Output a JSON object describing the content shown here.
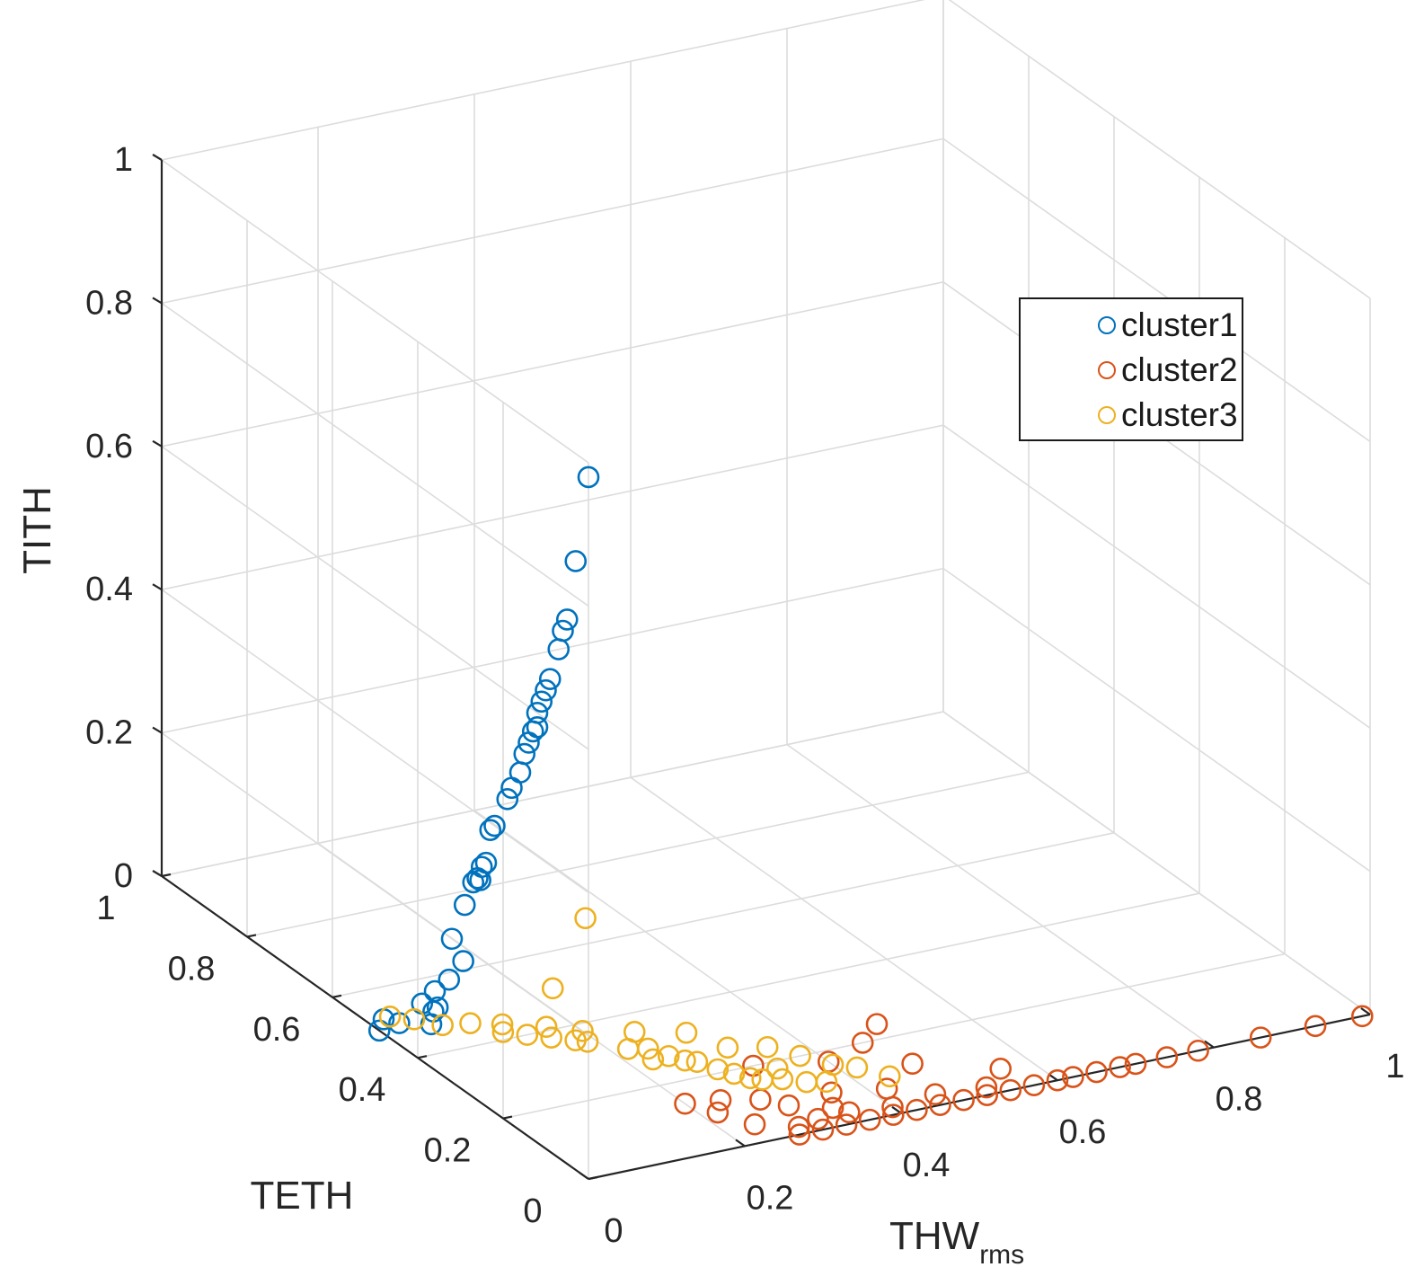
{
  "chart_data": {
    "type": "scatter3d",
    "xlabel": "THW",
    "xlabel_sub": "rms",
    "ylabel": "TETH",
    "zlabel": "TITH",
    "xlim": [
      0,
      1
    ],
    "ylim": [
      0,
      1
    ],
    "zlim": [
      0,
      1
    ],
    "x_ticks": [
      "0",
      "0.2",
      "0.4",
      "0.6",
      "0.8",
      "1"
    ],
    "y_ticks": [
      "0",
      "0.2",
      "0.4",
      "0.6",
      "0.8",
      "1"
    ],
    "z_ticks": [
      "0",
      "0.2",
      "0.4",
      "0.6",
      "0.8",
      "1"
    ],
    "grid": true,
    "legend_position": "top-right",
    "series": [
      {
        "name": "cluster1",
        "color": "#0072BD",
        "points": [
          [
            0.0,
            0.0,
            0.98
          ],
          [
            0.0,
            0.03,
            0.85
          ],
          [
            0.0,
            0.05,
            0.76
          ],
          [
            0.0,
            0.06,
            0.74
          ],
          [
            0.0,
            0.07,
            0.71
          ],
          [
            0.0,
            0.09,
            0.66
          ],
          [
            0.0,
            0.1,
            0.64
          ],
          [
            0.0,
            0.11,
            0.62
          ],
          [
            0.0,
            0.12,
            0.6
          ],
          [
            0.0,
            0.12,
            0.58
          ],
          [
            0.0,
            0.13,
            0.57
          ],
          [
            0.0,
            0.14,
            0.55
          ],
          [
            0.0,
            0.15,
            0.53
          ],
          [
            0.0,
            0.16,
            0.5
          ],
          [
            0.0,
            0.18,
            0.47
          ],
          [
            0.0,
            0.19,
            0.45
          ],
          [
            0.0,
            0.22,
            0.4
          ],
          [
            0.0,
            0.23,
            0.39
          ],
          [
            0.0,
            0.24,
            0.34
          ],
          [
            0.0,
            0.25,
            0.33
          ],
          [
            0.0,
            0.26,
            0.31
          ],
          [
            0.0,
            0.27,
            0.3
          ],
          [
            0.0,
            0.29,
            0.26
          ],
          [
            0.02,
            0.29,
            0.29
          ],
          [
            0.0,
            0.32,
            0.2
          ],
          [
            0.02,
            0.33,
            0.16
          ],
          [
            0.0,
            0.36,
            0.11
          ],
          [
            0.0,
            0.39,
            0.08
          ],
          [
            0.02,
            0.39,
            0.07
          ],
          [
            0.02,
            0.4,
            0.06
          ],
          [
            0.04,
            0.4,
            0.1
          ],
          [
            0.0,
            0.48,
            0.02
          ],
          [
            0.0,
            0.49,
            0.0
          ],
          [
            0.02,
            0.48,
            0.01
          ],
          [
            0.05,
            0.46,
            0.01
          ]
        ]
      },
      {
        "name": "cluster2",
        "color": "#D95319",
        "points": [
          [
            0.27,
            0.0,
            0.0
          ],
          [
            0.3,
            0.0,
            0.0
          ],
          [
            0.33,
            0.0,
            0.0
          ],
          [
            0.36,
            0.0,
            0.0
          ],
          [
            0.39,
            0.0,
            0.0
          ],
          [
            0.42,
            0.0,
            0.0
          ],
          [
            0.45,
            0.0,
            0.0
          ],
          [
            0.48,
            0.0,
            0.0
          ],
          [
            0.51,
            0.0,
            0.0
          ],
          [
            0.54,
            0.0,
            0.0
          ],
          [
            0.57,
            0.0,
            0.0
          ],
          [
            0.6,
            0.0,
            0.0
          ],
          [
            0.62,
            0.0,
            0.0
          ],
          [
            0.65,
            0.0,
            0.0
          ],
          [
            0.68,
            0.0,
            0.0
          ],
          [
            0.7,
            0.0,
            0.0
          ],
          [
            0.74,
            0.0,
            0.0
          ],
          [
            0.78,
            0.0,
            0.0
          ],
          [
            0.86,
            0.0,
            0.0
          ],
          [
            0.93,
            0.0,
            0.0
          ],
          [
            0.99,
            0.0,
            0.0
          ],
          [
            0.28,
            0.02,
            0.0
          ],
          [
            0.31,
            0.03,
            0.0
          ],
          [
            0.35,
            0.03,
            0.0
          ],
          [
            0.4,
            0.02,
            0.0
          ],
          [
            0.46,
            0.03,
            0.0
          ],
          [
            0.52,
            0.02,
            0.0
          ],
          [
            0.24,
            0.05,
            0.0
          ],
          [
            0.22,
            0.1,
            0.0
          ],
          [
            0.3,
            0.08,
            0.0
          ],
          [
            0.36,
            0.09,
            0.0
          ],
          [
            0.42,
            0.07,
            0.0
          ],
          [
            0.48,
            0.12,
            0.0
          ],
          [
            0.56,
            0.06,
            0.0
          ],
          [
            0.2,
            0.14,
            0.0
          ],
          [
            0.24,
            0.13,
            0.0
          ],
          [
            0.28,
            0.11,
            0.0
          ],
          [
            0.32,
            0.2,
            0.0
          ],
          [
            0.4,
            0.17,
            0.0
          ],
          [
            0.5,
            0.24,
            0.0
          ],
          [
            0.46,
            0.2,
            0.0
          ],
          [
            0.34,
            0.05,
            0.0
          ]
        ]
      },
      {
        "name": "cluster3",
        "color": "#EDB120",
        "points": [
          [
            0.03,
            0.52,
            0.0
          ],
          [
            0.05,
            0.5,
            0.0
          ],
          [
            0.07,
            0.47,
            0.0
          ],
          [
            0.1,
            0.46,
            0.0
          ],
          [
            0.12,
            0.42,
            0.0
          ],
          [
            0.14,
            0.4,
            0.0
          ],
          [
            0.16,
            0.38,
            0.0
          ],
          [
            0.18,
            0.36,
            0.0
          ],
          [
            0.19,
            0.35,
            0.0
          ],
          [
            0.17,
            0.41,
            0.0
          ],
          [
            0.2,
            0.38,
            0.0
          ],
          [
            0.22,
            0.31,
            0.0
          ],
          [
            0.24,
            0.3,
            0.0
          ],
          [
            0.25,
            0.27,
            0.0
          ],
          [
            0.23,
            0.27,
            0.0
          ],
          [
            0.26,
            0.25,
            0.0
          ],
          [
            0.27,
            0.24,
            0.0
          ],
          [
            0.28,
            0.21,
            0.0
          ],
          [
            0.29,
            0.19,
            0.0
          ],
          [
            0.3,
            0.17,
            0.0
          ],
          [
            0.31,
            0.16,
            0.0
          ],
          [
            0.33,
            0.15,
            0.0
          ],
          [
            0.35,
            0.13,
            0.0
          ],
          [
            0.37,
            0.12,
            0.0
          ],
          [
            0.34,
            0.18,
            0.0
          ],
          [
            0.38,
            0.2,
            0.0
          ],
          [
            0.4,
            0.16,
            0.0
          ],
          [
            0.42,
            0.14,
            0.0
          ],
          [
            0.44,
            0.1,
            0.0
          ],
          [
            0.2,
            0.45,
            0.03
          ],
          [
            0.28,
            0.52,
            0.08
          ],
          [
            0.3,
            0.32,
            0.0
          ],
          [
            0.36,
            0.24,
            0.0
          ],
          [
            0.25,
            0.35,
            0.0
          ],
          [
            0.13,
            0.44,
            0.0
          ],
          [
            0.32,
            0.26,
            0.0
          ]
        ]
      }
    ]
  },
  "legend": {
    "items": [
      {
        "label": "cluster1",
        "color": "#0072BD"
      },
      {
        "label": "cluster2",
        "color": "#D95319"
      },
      {
        "label": "cluster3",
        "color": "#EDB120"
      }
    ]
  }
}
